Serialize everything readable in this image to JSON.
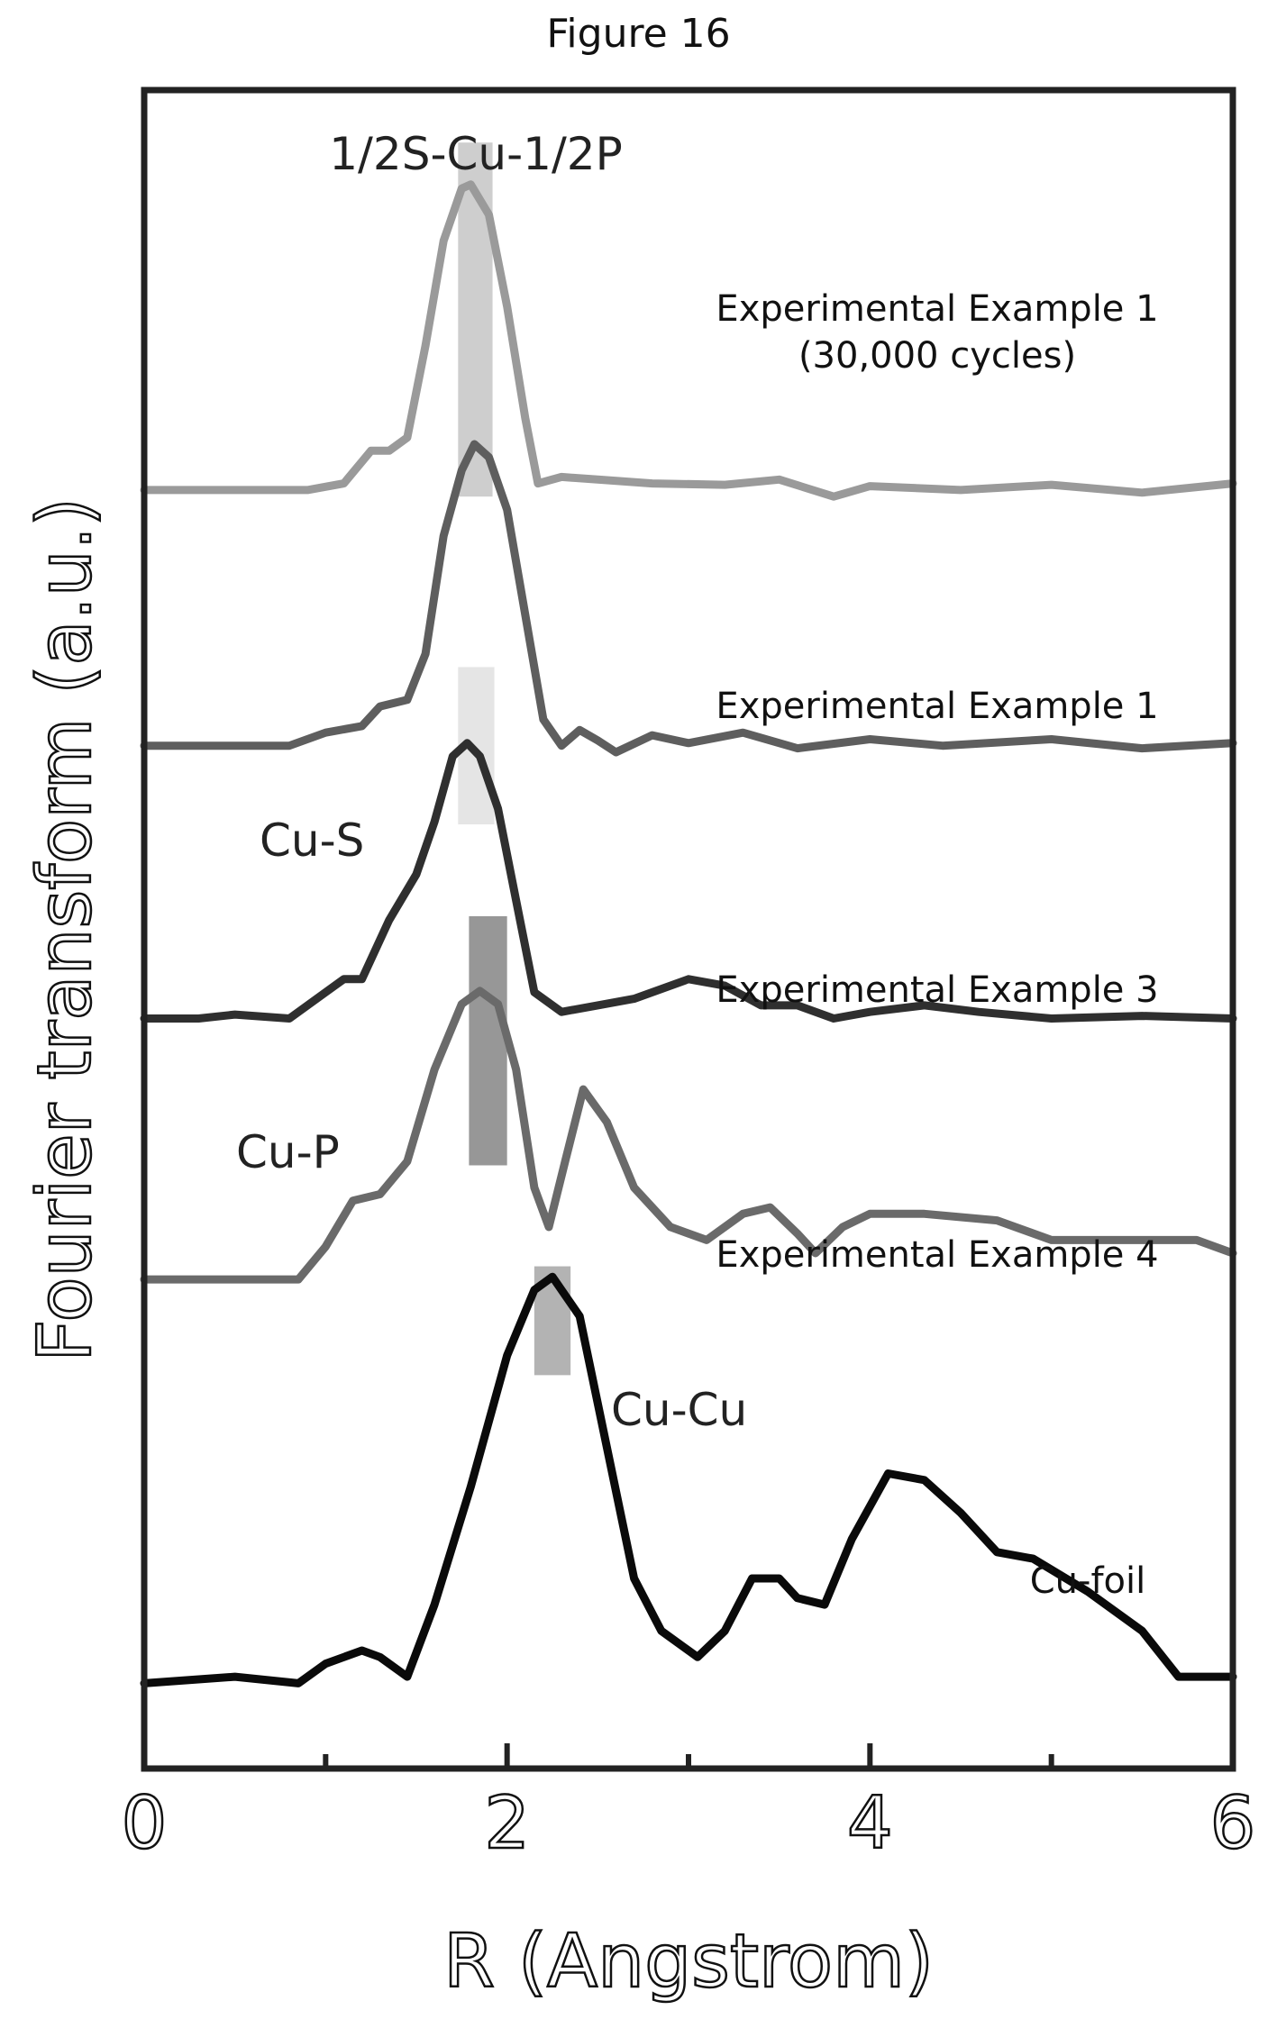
{
  "figure_title": "Figure 16",
  "chart_data": {
    "type": "line",
    "title": "",
    "xlabel": "R (Angstrom)",
    "ylabel": "Fourier transform (a.u.)",
    "xlim": [
      0,
      6
    ],
    "xticks": [
      "0",
      "2",
      "4",
      "6"
    ],
    "y_ticks_shown": false,
    "stacked_offset": true,
    "grid": false,
    "legend": "inline labels at right of each curve",
    "series": [
      {
        "name": "Experimental Example 1 (30,000 cycles)",
        "label_lines": [
          "Experimental Example 1",
          "(30,000 cycles)"
        ],
        "color": "#9a9a9a",
        "baseline": 6.55,
        "points": [
          [
            0,
            0
          ],
          [
            0.5,
            0
          ],
          [
            0.9,
            0
          ],
          [
            1.1,
            0.05
          ],
          [
            1.25,
            0.3
          ],
          [
            1.35,
            0.3
          ],
          [
            1.45,
            0.4
          ],
          [
            1.55,
            1.1
          ],
          [
            1.65,
            1.9
          ],
          [
            1.75,
            2.3
          ],
          [
            1.8,
            2.33
          ],
          [
            1.9,
            2.1
          ],
          [
            2.0,
            1.4
          ],
          [
            2.1,
            0.55
          ],
          [
            2.17,
            0.05
          ],
          [
            2.3,
            0.1
          ],
          [
            2.5,
            0.08
          ],
          [
            2.8,
            0.05
          ],
          [
            3.2,
            0.04
          ],
          [
            3.5,
            0.08
          ],
          [
            3.8,
            -0.05
          ],
          [
            4.0,
            0.03
          ],
          [
            4.5,
            0.0
          ],
          [
            5.0,
            0.04
          ],
          [
            5.5,
            -0.02
          ],
          [
            6.0,
            0.05
          ]
        ]
      },
      {
        "name": "Experimental Example 1",
        "label_lines": [
          "Experimental Example 1"
        ],
        "color": "#5e5e5e",
        "baseline": 4.6,
        "points": [
          [
            0,
            0
          ],
          [
            0.5,
            0
          ],
          [
            0.8,
            0.0
          ],
          [
            1.0,
            0.1
          ],
          [
            1.2,
            0.15
          ],
          [
            1.3,
            0.3
          ],
          [
            1.45,
            0.35
          ],
          [
            1.55,
            0.7
          ],
          [
            1.65,
            1.6
          ],
          [
            1.75,
            2.1
          ],
          [
            1.82,
            2.3
          ],
          [
            1.9,
            2.2
          ],
          [
            2.0,
            1.8
          ],
          [
            2.1,
            1.0
          ],
          [
            2.2,
            0.2
          ],
          [
            2.3,
            0.0
          ],
          [
            2.4,
            0.12
          ],
          [
            2.5,
            0.04
          ],
          [
            2.6,
            -0.05
          ],
          [
            2.8,
            0.08
          ],
          [
            3.0,
            0.02
          ],
          [
            3.3,
            0.1
          ],
          [
            3.6,
            -0.02
          ],
          [
            4.0,
            0.05
          ],
          [
            4.4,
            0.0
          ],
          [
            5.0,
            0.05
          ],
          [
            5.5,
            -0.02
          ],
          [
            6.0,
            0.02
          ]
        ]
      },
      {
        "name": "Experimental Example 3",
        "label_lines": [
          "Experimental Example 3"
        ],
        "color": "#2f2f2f",
        "baseline": 2.52,
        "points": [
          [
            0,
            0
          ],
          [
            0.3,
            0
          ],
          [
            0.5,
            0.03
          ],
          [
            0.8,
            0.0
          ],
          [
            1.0,
            0.2
          ],
          [
            1.1,
            0.3
          ],
          [
            1.2,
            0.3
          ],
          [
            1.35,
            0.75
          ],
          [
            1.5,
            1.1
          ],
          [
            1.6,
            1.5
          ],
          [
            1.7,
            2.0
          ],
          [
            1.78,
            2.1
          ],
          [
            1.85,
            2.0
          ],
          [
            1.95,
            1.6
          ],
          [
            2.05,
            0.9
          ],
          [
            2.15,
            0.2
          ],
          [
            2.3,
            0.05
          ],
          [
            2.5,
            0.1
          ],
          [
            2.7,
            0.15
          ],
          [
            3.0,
            0.3
          ],
          [
            3.2,
            0.25
          ],
          [
            3.4,
            0.1
          ],
          [
            3.6,
            0.1
          ],
          [
            3.8,
            0.0
          ],
          [
            4.0,
            0.05
          ],
          [
            4.3,
            0.1
          ],
          [
            4.6,
            0.05
          ],
          [
            5.0,
            0.0
          ],
          [
            5.5,
            0.02
          ],
          [
            6.0,
            0.0
          ]
        ]
      },
      {
        "name": "Experimental Example 4",
        "label_lines": [
          "Experimental Example 4"
        ],
        "color": "#6a6a6a",
        "baseline": 0.53,
        "points": [
          [
            0,
            0
          ],
          [
            0.5,
            0
          ],
          [
            0.85,
            0.0
          ],
          [
            1.0,
            0.25
          ],
          [
            1.15,
            0.6
          ],
          [
            1.3,
            0.65
          ],
          [
            1.45,
            0.9
          ],
          [
            1.6,
            1.6
          ],
          [
            1.75,
            2.1
          ],
          [
            1.85,
            2.2
          ],
          [
            1.95,
            2.1
          ],
          [
            2.05,
            1.6
          ],
          [
            2.15,
            0.7
          ],
          [
            2.23,
            0.4
          ],
          [
            2.32,
            0.9
          ],
          [
            2.42,
            1.45
          ],
          [
            2.55,
            1.2
          ],
          [
            2.7,
            0.7
          ],
          [
            2.9,
            0.4
          ],
          [
            3.1,
            0.3
          ],
          [
            3.3,
            0.5
          ],
          [
            3.45,
            0.55
          ],
          [
            3.6,
            0.35
          ],
          [
            3.7,
            0.2
          ],
          [
            3.85,
            0.4
          ],
          [
            4.0,
            0.5
          ],
          [
            4.3,
            0.5
          ],
          [
            4.7,
            0.45
          ],
          [
            5.0,
            0.3
          ],
          [
            5.5,
            0.3
          ],
          [
            5.8,
            0.3
          ],
          [
            6.0,
            0.2
          ]
        ]
      },
      {
        "name": "Cu-foil",
        "label_lines": [
          "Cu-foil"
        ],
        "color": "#0a0a0a",
        "baseline": -2.55,
        "points": [
          [
            0,
            0
          ],
          [
            0.5,
            0.05
          ],
          [
            0.85,
            0.0
          ],
          [
            1.0,
            0.15
          ],
          [
            1.2,
            0.25
          ],
          [
            1.3,
            0.2
          ],
          [
            1.45,
            0.05
          ],
          [
            1.6,
            0.6
          ],
          [
            1.8,
            1.5
          ],
          [
            2.0,
            2.5
          ],
          [
            2.15,
            3.0
          ],
          [
            2.25,
            3.1
          ],
          [
            2.4,
            2.8
          ],
          [
            2.55,
            1.8
          ],
          [
            2.7,
            0.8
          ],
          [
            2.85,
            0.4
          ],
          [
            3.05,
            0.2
          ],
          [
            3.2,
            0.4
          ],
          [
            3.35,
            0.8
          ],
          [
            3.5,
            0.8
          ],
          [
            3.6,
            0.65
          ],
          [
            3.75,
            0.6
          ],
          [
            3.9,
            1.1
          ],
          [
            4.1,
            1.6
          ],
          [
            4.3,
            1.55
          ],
          [
            4.5,
            1.3
          ],
          [
            4.7,
            1.0
          ],
          [
            4.9,
            0.95
          ],
          [
            5.2,
            0.7
          ],
          [
            5.5,
            0.4
          ],
          [
            5.7,
            0.05
          ],
          [
            6.0,
            0.05
          ]
        ]
      }
    ],
    "highlights": [
      {
        "label": "1/2S-Cu-1/2P",
        "x_range": [
          1.73,
          1.92
        ],
        "color": "#c6c6c6",
        "y_span": [
          6.5,
          9.2
        ]
      },
      {
        "label": "Cu-S",
        "x_range": [
          1.73,
          1.93
        ],
        "color": "#e0e0e0",
        "y_span": [
          4.0,
          5.2
        ]
      },
      {
        "label": "Cu-P",
        "x_range": [
          1.79,
          2.0
        ],
        "color": "#858585",
        "y_span": [
          1.4,
          3.3
        ]
      },
      {
        "label": "Cu-Cu",
        "x_range": [
          2.15,
          2.35
        ],
        "color": "#a6a6a6",
        "y_span": [
          -0.2,
          0.63
        ]
      }
    ]
  }
}
